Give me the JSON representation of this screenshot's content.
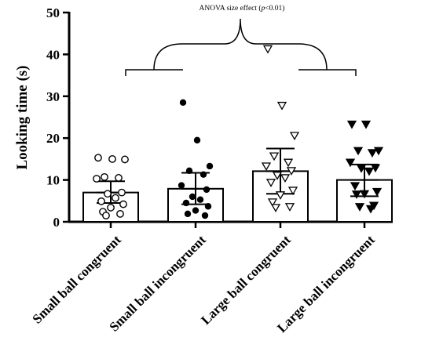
{
  "chart_data": {
    "type": "bar",
    "title": "",
    "xlabel": "",
    "ylabel": "Looking time (s)",
    "ylim": [
      0,
      50
    ],
    "yticks": [
      0,
      10,
      20,
      30,
      40,
      50
    ],
    "grid": false,
    "categories": [
      "Small ball congruent",
      "Small ball incongruent",
      "Large ball congruent",
      "Large ball incongruent"
    ],
    "values": [
      7.0,
      7.9,
      12.1,
      10.0
    ],
    "error_upper": [
      9.7,
      11.7,
      17.5,
      13.7
    ],
    "error_lower": [
      4.5,
      4.2,
      6.7,
      6.1
    ],
    "points": [
      {
        "marker": "open-circle",
        "values": [
          15.3,
          15.0,
          14.9,
          10.7,
          10.5,
          10.3,
          7.0,
          6.7,
          5.7,
          4.9,
          4.2,
          3.4,
          2.4,
          1.9,
          1.5
        ]
      },
      {
        "marker": "filled-circle",
        "values": [
          28.5,
          19.5,
          13.3,
          12.2,
          11.3,
          8.7,
          7.7,
          6.0,
          5.3,
          4.5,
          3.7,
          2.7,
          1.9,
          1.5
        ]
      },
      {
        "marker": "open-triangle",
        "values": [
          41.3,
          27.8,
          20.6,
          15.7,
          14.2,
          13.3,
          12.2,
          11.1,
          10.5,
          9.4,
          7.5,
          6.4,
          4.7,
          3.6,
          3.4
        ]
      },
      {
        "marker": "filled-triangle",
        "values": [
          23.3,
          23.3,
          17.0,
          17.0,
          16.5,
          14.2,
          12.9,
          12.8,
          12.1,
          8.6,
          7.2,
          6.7,
          6.6,
          3.9,
          3.6,
          3.1
        ]
      }
    ],
    "annotation": {
      "text_prefix": "ANOVA size effect (",
      "p_symbol": "p",
      "text_suffix": "<0.01)"
    }
  }
}
